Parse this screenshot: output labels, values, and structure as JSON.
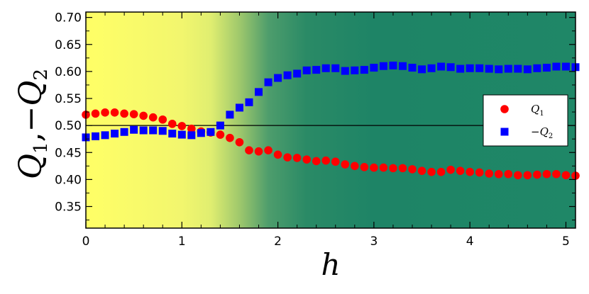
{
  "chart_data": {
    "type": "scatter",
    "xlabel": "h",
    "ylabel_parts": [
      "Q",
      "1",
      ",−",
      "Q",
      "2"
    ],
    "xlim": [
      0,
      5.1
    ],
    "ylim": [
      0.31,
      0.71
    ],
    "xticks": [
      0,
      1,
      2,
      3,
      4,
      5
    ],
    "xtick_labels": [
      "0",
      "1",
      "2",
      "3",
      "4",
      "5"
    ],
    "yticks": [
      0.35,
      0.4,
      0.45,
      0.5,
      0.55,
      0.6,
      0.65,
      0.7
    ],
    "ytick_labels": [
      "0.35",
      "0.40",
      "0.45",
      "0.50",
      "0.55",
      "0.60",
      "0.65",
      "0.70"
    ],
    "reference_line_y": 0.5,
    "background_gradient": {
      "stops": [
        {
          "x": 0.0,
          "color": "#ffff66"
        },
        {
          "x": 1.0,
          "color": "#f2f66e"
        },
        {
          "x": 1.3,
          "color": "#e0ee70"
        },
        {
          "x": 1.6,
          "color": "#9fc86c"
        },
        {
          "x": 1.9,
          "color": "#4e9d6c"
        },
        {
          "x": 2.3,
          "color": "#2a8a66"
        },
        {
          "x": 3.0,
          "color": "#1e8466"
        },
        {
          "x": 5.1,
          "color": "#1f8767"
        }
      ]
    },
    "legend_position": "right",
    "series": [
      {
        "name_parts": [
          "Q",
          "1"
        ],
        "marker": "circle",
        "color": "#ff0000",
        "x": [
          0.0,
          0.1,
          0.2,
          0.3,
          0.4,
          0.5,
          0.6,
          0.7,
          0.8,
          0.9,
          1.0,
          1.1,
          1.2,
          1.3,
          1.4,
          1.5,
          1.6,
          1.7,
          1.8,
          1.9,
          2.0,
          2.1,
          2.2,
          2.3,
          2.4,
          2.5,
          2.6,
          2.7,
          2.8,
          2.9,
          3.0,
          3.1,
          3.2,
          3.3,
          3.4,
          3.5,
          3.6,
          3.7,
          3.8,
          3.9,
          4.0,
          4.1,
          4.2,
          4.3,
          4.4,
          4.5,
          4.6,
          4.7,
          4.8,
          4.9,
          5.0,
          5.1
        ],
        "y": [
          0.52,
          0.522,
          0.524,
          0.524,
          0.522,
          0.521,
          0.518,
          0.515,
          0.511,
          0.503,
          0.499,
          0.494,
          0.489,
          0.487,
          0.483,
          0.477,
          0.469,
          0.454,
          0.452,
          0.454,
          0.446,
          0.441,
          0.44,
          0.437,
          0.434,
          0.435,
          0.433,
          0.428,
          0.425,
          0.423,
          0.422,
          0.422,
          0.421,
          0.421,
          0.419,
          0.416,
          0.414,
          0.414,
          0.418,
          0.416,
          0.414,
          0.413,
          0.411,
          0.41,
          0.41,
          0.408,
          0.408,
          0.409,
          0.41,
          0.41,
          0.408,
          0.407
        ]
      },
      {
        "name_parts": [
          "−Q",
          "2"
        ],
        "marker": "square",
        "color": "#0000ff",
        "x": [
          0.0,
          0.1,
          0.2,
          0.3,
          0.4,
          0.5,
          0.6,
          0.7,
          0.8,
          0.9,
          1.0,
          1.1,
          1.2,
          1.3,
          1.4,
          1.5,
          1.6,
          1.7,
          1.8,
          1.9,
          2.0,
          2.1,
          2.2,
          2.3,
          2.4,
          2.5,
          2.6,
          2.7,
          2.8,
          2.9,
          3.0,
          3.1,
          3.2,
          3.3,
          3.4,
          3.5,
          3.6,
          3.7,
          3.8,
          3.9,
          4.0,
          4.1,
          4.2,
          4.3,
          4.4,
          4.5,
          4.6,
          4.7,
          4.8,
          4.9,
          5.0,
          5.1
        ],
        "y": [
          0.478,
          0.48,
          0.482,
          0.485,
          0.488,
          0.492,
          0.491,
          0.491,
          0.49,
          0.485,
          0.483,
          0.482,
          0.486,
          0.488,
          0.5,
          0.52,
          0.533,
          0.543,
          0.562,
          0.58,
          0.588,
          0.593,
          0.596,
          0.602,
          0.603,
          0.606,
          0.606,
          0.601,
          0.602,
          0.603,
          0.607,
          0.61,
          0.611,
          0.61,
          0.607,
          0.604,
          0.606,
          0.609,
          0.608,
          0.605,
          0.606,
          0.606,
          0.605,
          0.604,
          0.605,
          0.605,
          0.604,
          0.606,
          0.607,
          0.609,
          0.609,
          0.608
        ]
      }
    ]
  }
}
